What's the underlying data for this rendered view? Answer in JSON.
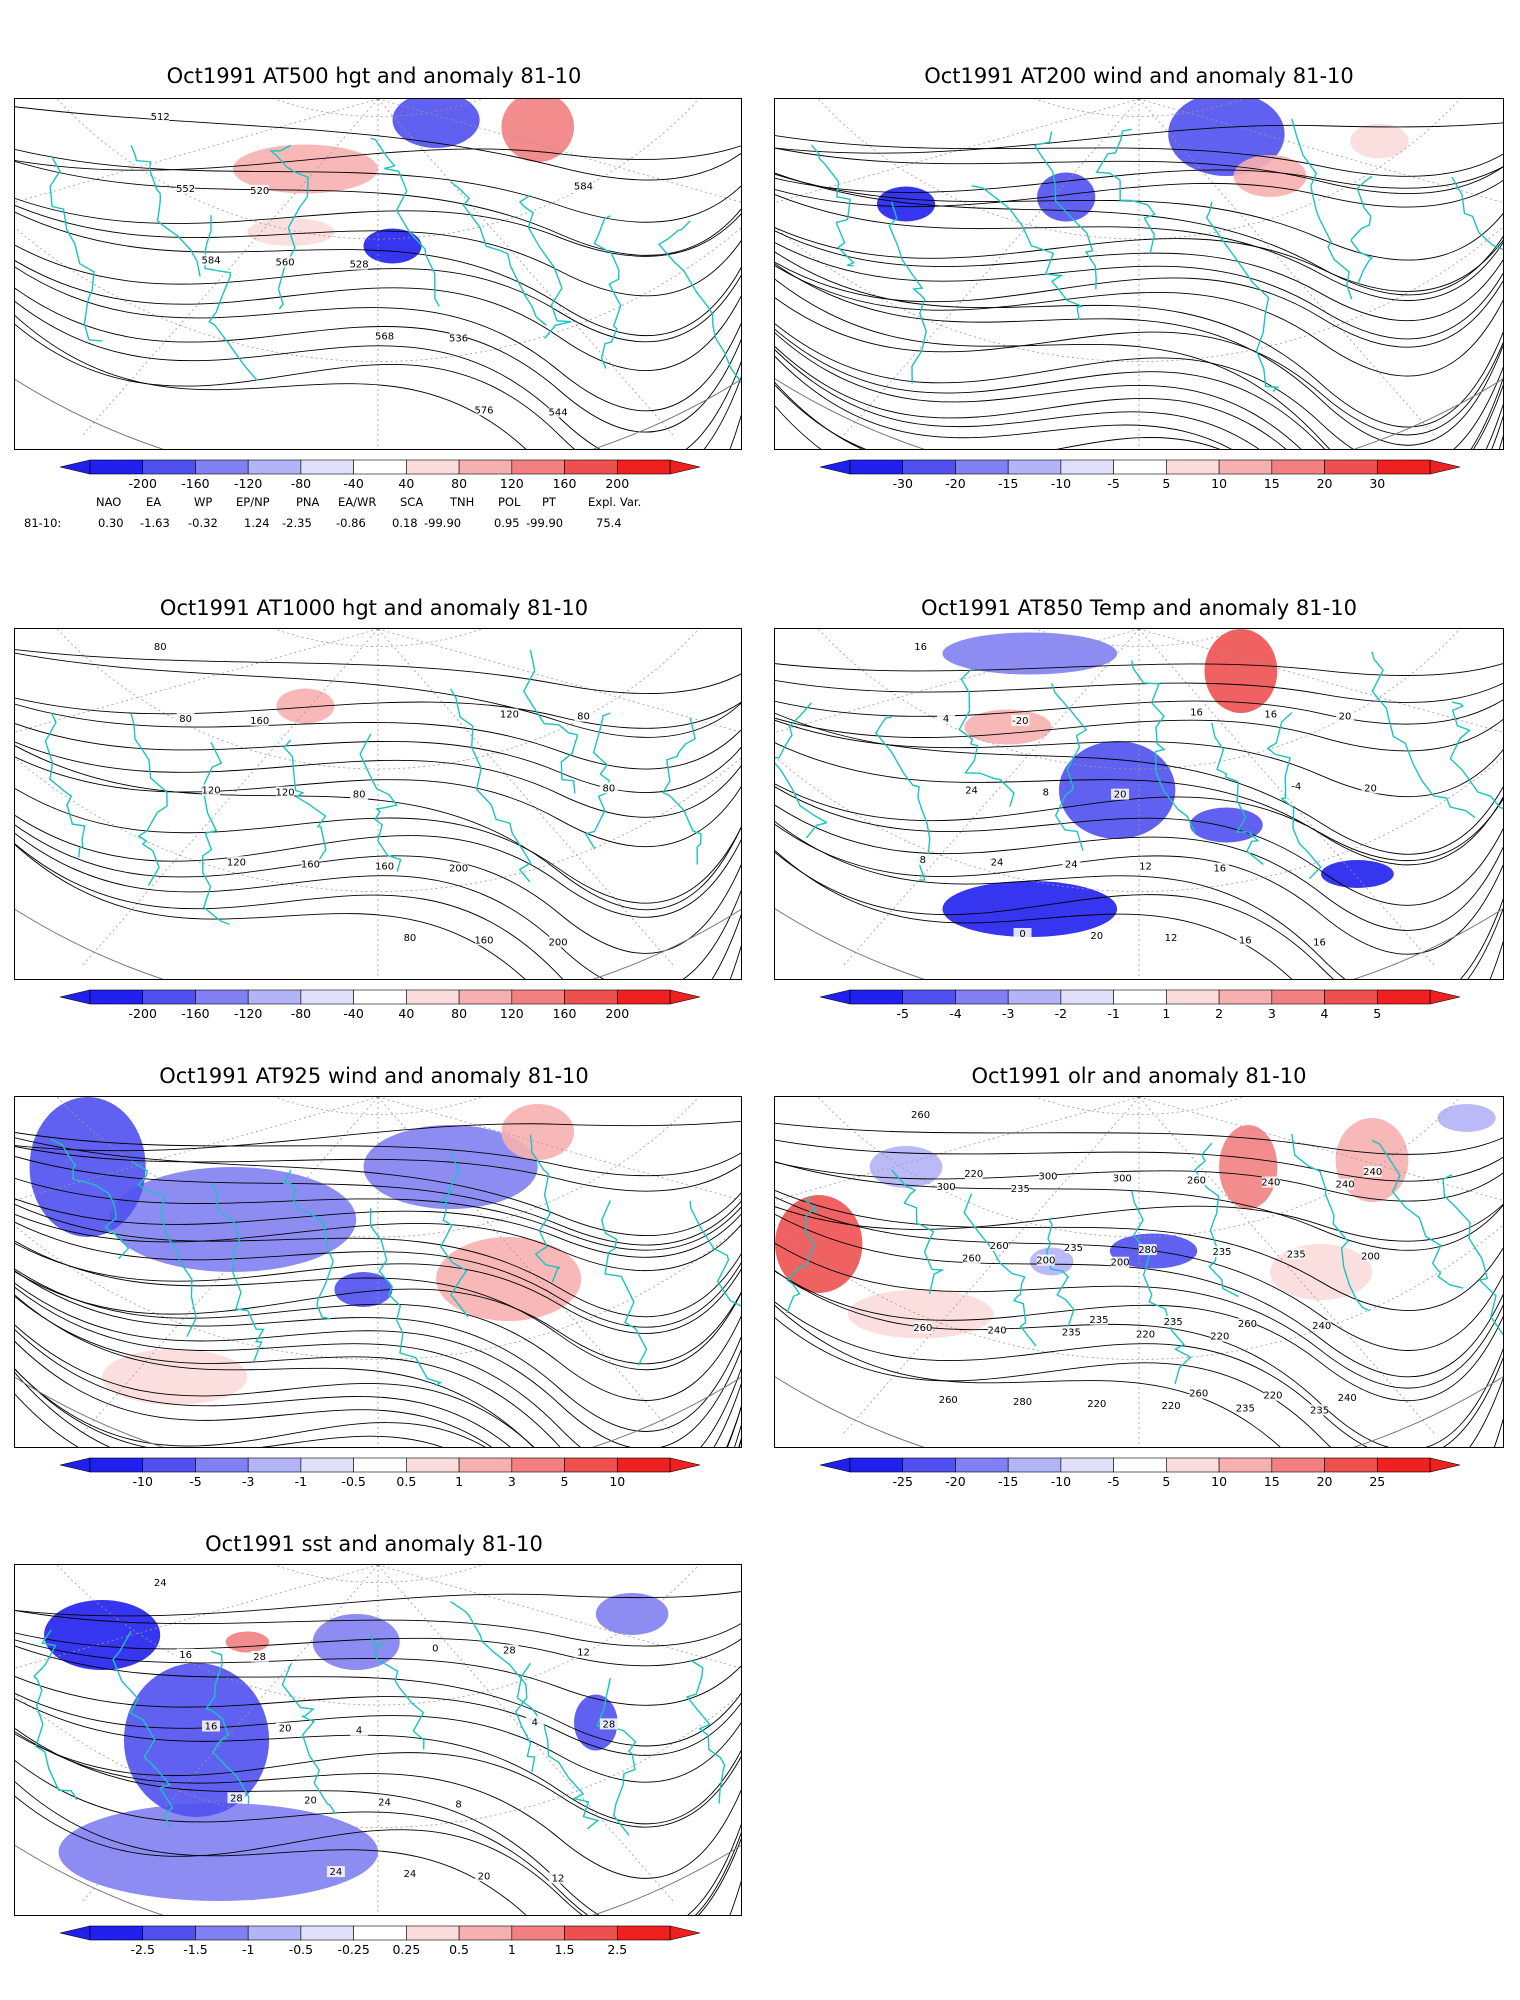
{
  "panels": [
    {
      "id": "p500",
      "title": "Oct1991 AT500 hgt and anomaly 81-10",
      "contour_labels": [
        "512",
        "520",
        "528",
        "536",
        "544",
        "552",
        "560",
        "568",
        "576",
        "584",
        "584"
      ],
      "colorbar": [
        "-200",
        "-160",
        "-120",
        "-80",
        "-40",
        "40",
        "80",
        "120",
        "160",
        "200"
      ]
    },
    {
      "id": "p200",
      "title": "Oct1991 AT200 wind and anomaly 81-10",
      "contour_labels": [],
      "colorbar": [
        "-30",
        "-20",
        "-15",
        "-10",
        "-5",
        "5",
        "10",
        "15",
        "20",
        "30"
      ]
    },
    {
      "id": "p1000",
      "title": "Oct1991 AT1000 hgt and anomaly 81-10",
      "contour_labels": [
        "80",
        "160",
        "80",
        "200",
        "200",
        "80",
        "120",
        "160",
        "160",
        "80",
        "120",
        "160",
        "80",
        "120",
        "80",
        "120"
      ],
      "colorbar": [
        "-200",
        "-160",
        "-120",
        "-80",
        "-40",
        "40",
        "80",
        "120",
        "160",
        "200"
      ]
    },
    {
      "id": "p850",
      "title": "Oct1991 AT850 Temp and anomaly 81-10",
      "contour_labels": [
        "16",
        "-20",
        "20",
        "16",
        "16",
        "4",
        "8",
        "12",
        "16",
        "20",
        "24",
        "24",
        "12",
        "16",
        "20",
        "24",
        "20",
        "16",
        "-4",
        "8",
        "0"
      ],
      "colorbar": [
        "-5",
        "-4",
        "-3",
        "-2",
        "-1",
        "1",
        "2",
        "3",
        "4",
        "5"
      ]
    },
    {
      "id": "p925",
      "title": "Oct1991 AT925 wind and anomaly 81-10",
      "contour_labels": [],
      "colorbar": [
        "-10",
        "-5",
        "-3",
        "-1",
        "-0.5",
        "0.5",
        "1",
        "3",
        "5",
        "10"
      ]
    },
    {
      "id": "polr",
      "title": "Oct1991 olr and anomaly 81-10",
      "contour_labels": [
        "260",
        "235",
        "200",
        "220",
        "235",
        "300",
        "200",
        "220",
        "235",
        "240",
        "260",
        "235",
        "220",
        "240",
        "200",
        "240",
        "220",
        "260",
        "235",
        "260",
        "280",
        "300",
        "235",
        "240",
        "260",
        "300",
        "280",
        "260",
        "240",
        "220",
        "235",
        "235",
        "220",
        "240",
        "260",
        "235",
        "260"
      ],
      "colorbar": [
        "-25",
        "-20",
        "-15",
        "-10",
        "-5",
        "5",
        "10",
        "15",
        "20",
        "25"
      ]
    },
    {
      "id": "psst",
      "title": "Oct1991 sst and anomaly 81-10",
      "contour_labels": [
        "24",
        "28",
        "4",
        "8",
        "12",
        "16",
        "20",
        "24",
        "20",
        "12",
        "16",
        "20",
        "24",
        "28",
        "28",
        "28",
        "24",
        "0",
        "4"
      ],
      "colorbar": [
        "-2.5",
        "-1.5",
        "-1",
        "-0.5",
        "-0.25",
        "0.25",
        "0.5",
        "1",
        "1.5",
        "2.5"
      ]
    }
  ],
  "indices": {
    "headers": [
      "NAO",
      "EA",
      "WP",
      "EP/NP",
      "PNA",
      "EA/WR",
      "SCA",
      "TNH",
      "POL",
      "PT",
      "Expl. Var."
    ],
    "row_label": "81-10:",
    "values": [
      "0.30",
      "-1.63",
      "-0.32",
      "1.24",
      "-2.35",
      "-0.86",
      "0.18",
      "-99.90",
      "0.95",
      "-99.90",
      "75.4"
    ]
  },
  "colors": {
    "coast": "#19c3c3",
    "contour": "#000000",
    "grid": "#9a9a9a",
    "neg": [
      "#2020ee",
      "#5050f0",
      "#8080f2",
      "#b3b3f7",
      "#e0e0fb"
    ],
    "pos": [
      "#fbdcdc",
      "#f7b0b0",
      "#f28080",
      "#ee5050",
      "#ee2020"
    ]
  }
}
